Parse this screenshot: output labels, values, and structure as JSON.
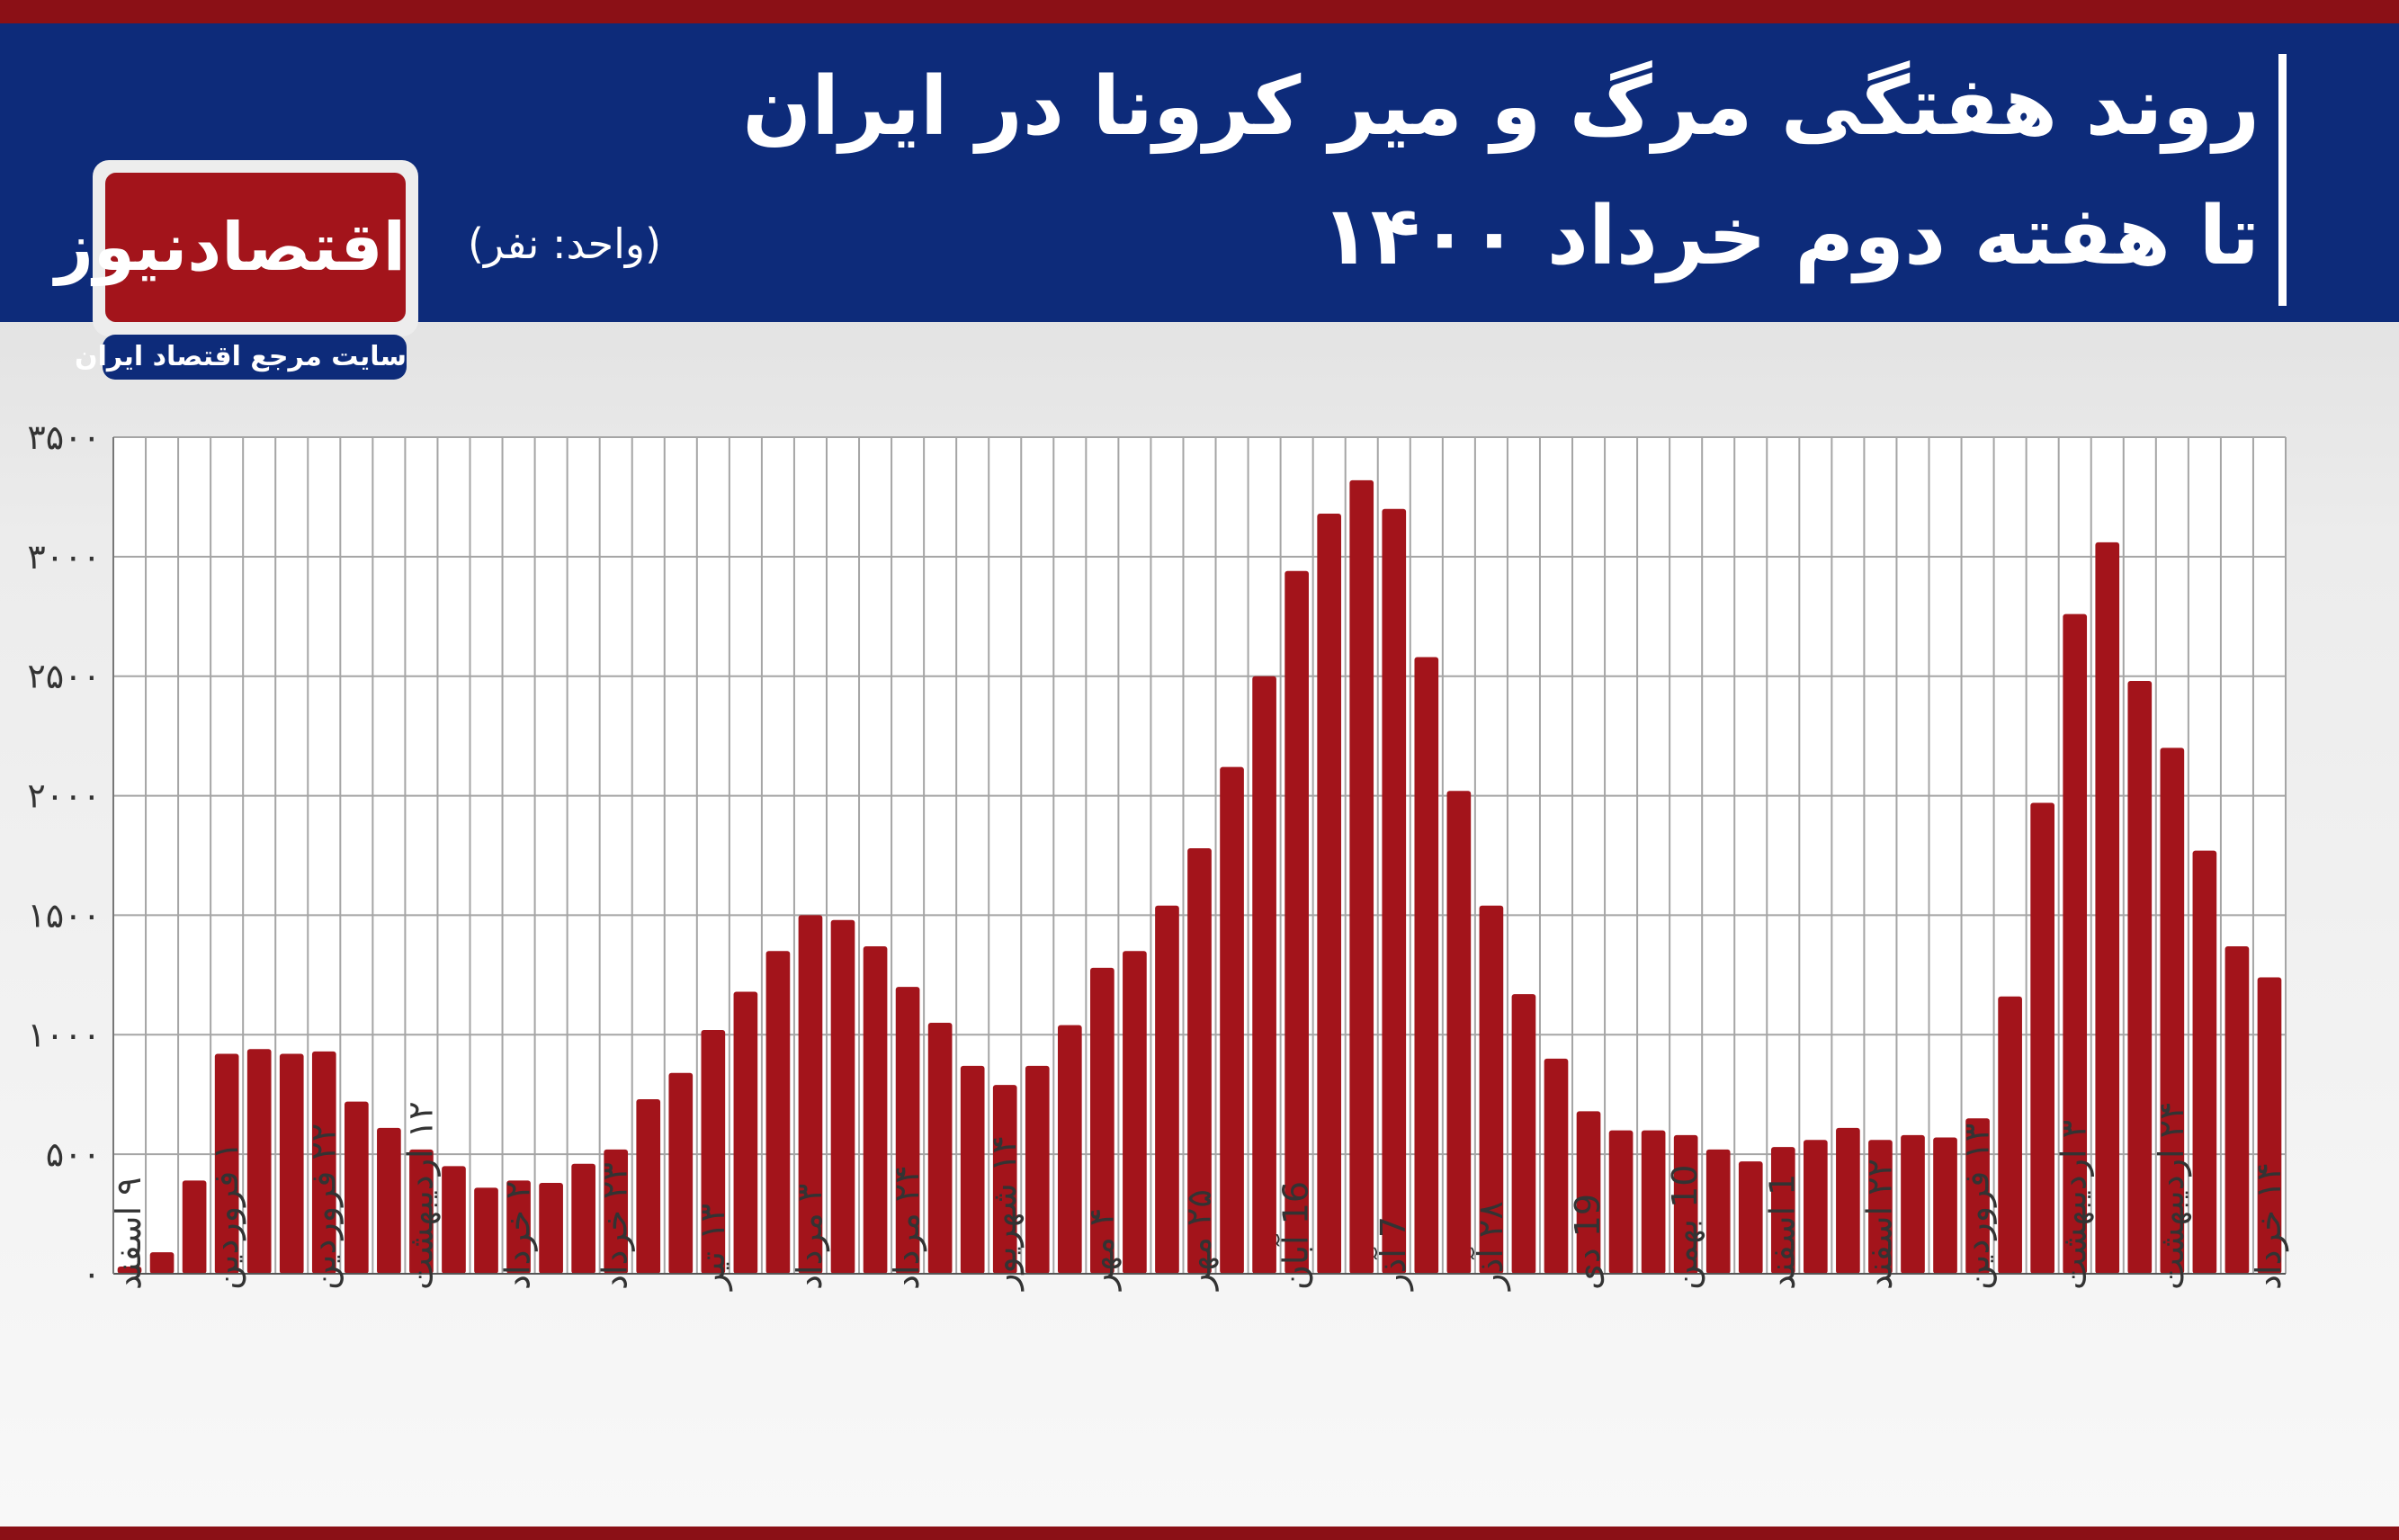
{
  "header": {
    "title_line1": "روند هفتگی مرگ و میر کرونا در ایران",
    "title_line2": "تا هفته دوم خرداد ۱۴۰۰",
    "unit": "(واحد: نفر)"
  },
  "logo": {
    "name": "اقتصادنیوز",
    "tagline": "سایت مرجع اقتصاد ایران"
  },
  "colors": {
    "header_bg": "#0d2b7a",
    "accent_red": "#8b1016",
    "bar": "#a3141b"
  },
  "chart_data": {
    "type": "bar",
    "title": "روند هفتگی مرگ و میر کرونا در ایران تا هفته دوم خرداد ۱۴۰۰",
    "ylabel": "(واحد: نفر)",
    "ylim": [
      0,
      3500
    ],
    "yticks": [
      "۰",
      "۵۰۰",
      "۱۰۰۰",
      "۱۵۰۰",
      "۲۰۰۰",
      "۲۵۰۰",
      "۳۰۰۰",
      "۳۵۰۰"
    ],
    "grid": true,
    "x_tick_labels": [
      "۹ اسفند",
      "۱ فروردین",
      "۲۲ فروردین",
      "۱۲ اردیبهشت",
      "۲ خرداد",
      "۲۳ خرداد",
      "۱۳ تیر",
      "۳ مرداد",
      "۲۴ مرداد",
      "۱۴ شهریور",
      "۴ مهر",
      "۲۵ مهر",
      "16 آبان",
      "7 آذر",
      "۲۸ آذر",
      "19 دی",
      "10 بهمن",
      "1 اسفند",
      "۲۲ اسفند",
      "۱۳ فروردین",
      "۳ اردیبهشت",
      "۲۴ اردیبهشت",
      "۱۴ خرداد"
    ],
    "x_tick_bar_index": [
      0,
      3,
      6,
      9,
      12,
      15,
      18,
      21,
      24,
      27,
      30,
      33,
      36,
      39,
      42,
      45,
      48,
      51,
      54,
      57,
      60,
      63,
      66
    ],
    "values": [
      30,
      90,
      390,
      920,
      940,
      920,
      930,
      720,
      610,
      520,
      450,
      360,
      390,
      380,
      460,
      520,
      730,
      840,
      1020,
      1180,
      1350,
      1500,
      1480,
      1370,
      1200,
      1050,
      870,
      790,
      870,
      1040,
      1280,
      1350,
      1540,
      1780,
      2120,
      2500,
      2940,
      3180,
      3320,
      3200,
      2580,
      2020,
      1540,
      1170,
      900,
      680,
      600,
      600,
      580,
      520,
      470,
      530,
      560,
      610,
      560,
      580,
      570,
      650,
      1160,
      1970,
      2760,
      3060,
      2480,
      2200,
      1770,
      1370,
      1240
    ]
  }
}
